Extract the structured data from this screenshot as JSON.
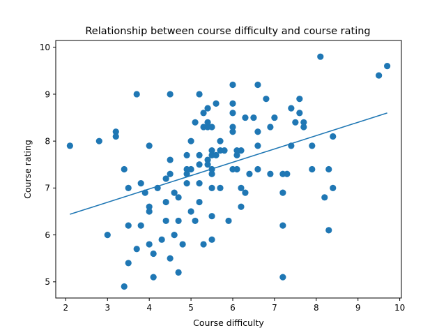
{
  "chart_data": {
    "type": "scatter",
    "title": "Relationship between course difficulty and course rating",
    "xlabel": "Course difficulty",
    "ylabel": "Course rating",
    "xlim": [
      1.76,
      10.04
    ],
    "ylim": [
      4.655,
      10.145
    ],
    "xticks": [
      "2",
      "3",
      "4",
      "5",
      "6",
      "7",
      "8",
      "9",
      "10"
    ],
    "yticks": [
      "5",
      "6",
      "7",
      "8",
      "9",
      "10"
    ],
    "grid": false,
    "color": "#1f77b4",
    "points": [
      [
        2.1,
        7.9
      ],
      [
        2.8,
        8.0
      ],
      [
        3.0,
        6.0
      ],
      [
        3.2,
        8.2
      ],
      [
        3.2,
        8.1
      ],
      [
        3.4,
        7.4
      ],
      [
        3.4,
        4.9
      ],
      [
        3.5,
        7.0
      ],
      [
        3.5,
        6.2
      ],
      [
        3.5,
        5.4
      ],
      [
        3.7,
        9.0
      ],
      [
        3.7,
        5.7
      ],
      [
        3.8,
        7.1
      ],
      [
        3.8,
        6.2
      ],
      [
        3.9,
        6.9
      ],
      [
        4.0,
        7.9
      ],
      [
        4.0,
        6.6
      ],
      [
        4.0,
        6.5
      ],
      [
        4.0,
        5.8
      ],
      [
        4.1,
        5.6
      ],
      [
        4.1,
        5.1
      ],
      [
        4.2,
        7.0
      ],
      [
        4.3,
        5.9
      ],
      [
        4.4,
        7.2
      ],
      [
        4.4,
        6.7
      ],
      [
        4.4,
        6.3
      ],
      [
        4.5,
        9.0
      ],
      [
        4.5,
        7.6
      ],
      [
        4.5,
        7.3
      ],
      [
        4.5,
        5.5
      ],
      [
        4.6,
        6.9
      ],
      [
        4.6,
        6.0
      ],
      [
        4.7,
        6.8
      ],
      [
        4.7,
        6.3
      ],
      [
        4.7,
        5.2
      ],
      [
        4.8,
        5.8
      ],
      [
        4.9,
        7.7
      ],
      [
        4.9,
        7.4
      ],
      [
        4.9,
        7.1
      ],
      [
        4.9,
        7.3
      ],
      [
        5.0,
        8.0
      ],
      [
        5.0,
        7.4
      ],
      [
        5.0,
        6.5
      ],
      [
        5.1,
        8.4
      ],
      [
        5.1,
        6.3
      ],
      [
        5.2,
        9.0
      ],
      [
        5.2,
        7.7
      ],
      [
        5.2,
        7.5
      ],
      [
        5.2,
        7.1
      ],
      [
        5.2,
        6.7
      ],
      [
        5.3,
        8.6
      ],
      [
        5.3,
        8.3
      ],
      [
        5.3,
        5.8
      ],
      [
        5.4,
        8.7
      ],
      [
        5.4,
        8.4
      ],
      [
        5.4,
        8.3
      ],
      [
        5.4,
        7.6
      ],
      [
        5.4,
        7.5
      ],
      [
        5.5,
        8.3
      ],
      [
        5.5,
        7.8
      ],
      [
        5.5,
        7.7
      ],
      [
        5.5,
        7.4
      ],
      [
        5.5,
        7.3
      ],
      [
        5.5,
        7.0
      ],
      [
        5.5,
        6.4
      ],
      [
        5.5,
        5.9
      ],
      [
        5.6,
        8.8
      ],
      [
        5.6,
        7.7
      ],
      [
        5.7,
        8.0
      ],
      [
        5.7,
        7.8
      ],
      [
        5.7,
        7.0
      ],
      [
        5.8,
        7.8
      ],
      [
        5.9,
        6.3
      ],
      [
        6.0,
        9.2
      ],
      [
        6.0,
        8.8
      ],
      [
        6.0,
        8.6
      ],
      [
        6.0,
        8.3
      ],
      [
        6.0,
        8.2
      ],
      [
        6.0,
        7.4
      ],
      [
        6.1,
        7.8
      ],
      [
        6.1,
        7.7
      ],
      [
        6.1,
        7.4
      ],
      [
        6.2,
        7.8
      ],
      [
        6.2,
        7.0
      ],
      [
        6.2,
        6.6
      ],
      [
        6.3,
        8.5
      ],
      [
        6.3,
        6.9
      ],
      [
        6.4,
        7.3
      ],
      [
        6.5,
        8.5
      ],
      [
        6.6,
        9.2
      ],
      [
        6.6,
        8.2
      ],
      [
        6.6,
        7.9
      ],
      [
        6.6,
        7.4
      ],
      [
        6.8,
        8.9
      ],
      [
        6.9,
        8.3
      ],
      [
        6.9,
        7.3
      ],
      [
        7.0,
        8.5
      ],
      [
        7.2,
        7.3
      ],
      [
        7.2,
        6.9
      ],
      [
        7.2,
        6.2
      ],
      [
        7.2,
        5.1
      ],
      [
        7.3,
        7.3
      ],
      [
        7.4,
        8.7
      ],
      [
        7.4,
        7.9
      ],
      [
        7.5,
        8.4
      ],
      [
        7.6,
        8.9
      ],
      [
        7.6,
        8.6
      ],
      [
        7.7,
        8.4
      ],
      [
        7.7,
        8.3
      ],
      [
        7.9,
        7.9
      ],
      [
        7.9,
        7.4
      ],
      [
        8.1,
        9.8
      ],
      [
        8.2,
        6.8
      ],
      [
        8.3,
        7.4
      ],
      [
        8.3,
        6.1
      ],
      [
        8.4,
        8.1
      ],
      [
        8.4,
        7.0
      ],
      [
        9.5,
        9.4
      ],
      [
        9.7,
        9.6
      ]
    ],
    "trendline": {
      "x": [
        2.1,
        9.7
      ],
      "y": [
        6.44,
        8.6
      ]
    }
  }
}
